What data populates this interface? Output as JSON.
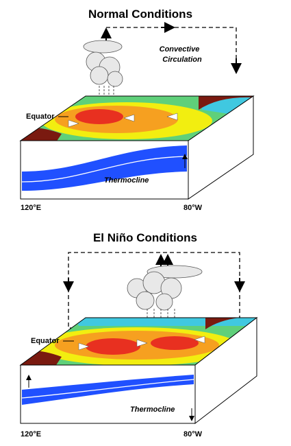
{
  "panels": [
    {
      "title": "Normal Conditions",
      "circulation": [
        "Convective",
        "Circulation"
      ],
      "equator": "Equator",
      "thermocline": "Thermocline",
      "west": "120°E",
      "east": "80°W"
    },
    {
      "title": "El Niño Conditions",
      "equator": "Equator",
      "thermocline": "Thermocline",
      "west": "120°E",
      "east": "80°W"
    }
  ]
}
